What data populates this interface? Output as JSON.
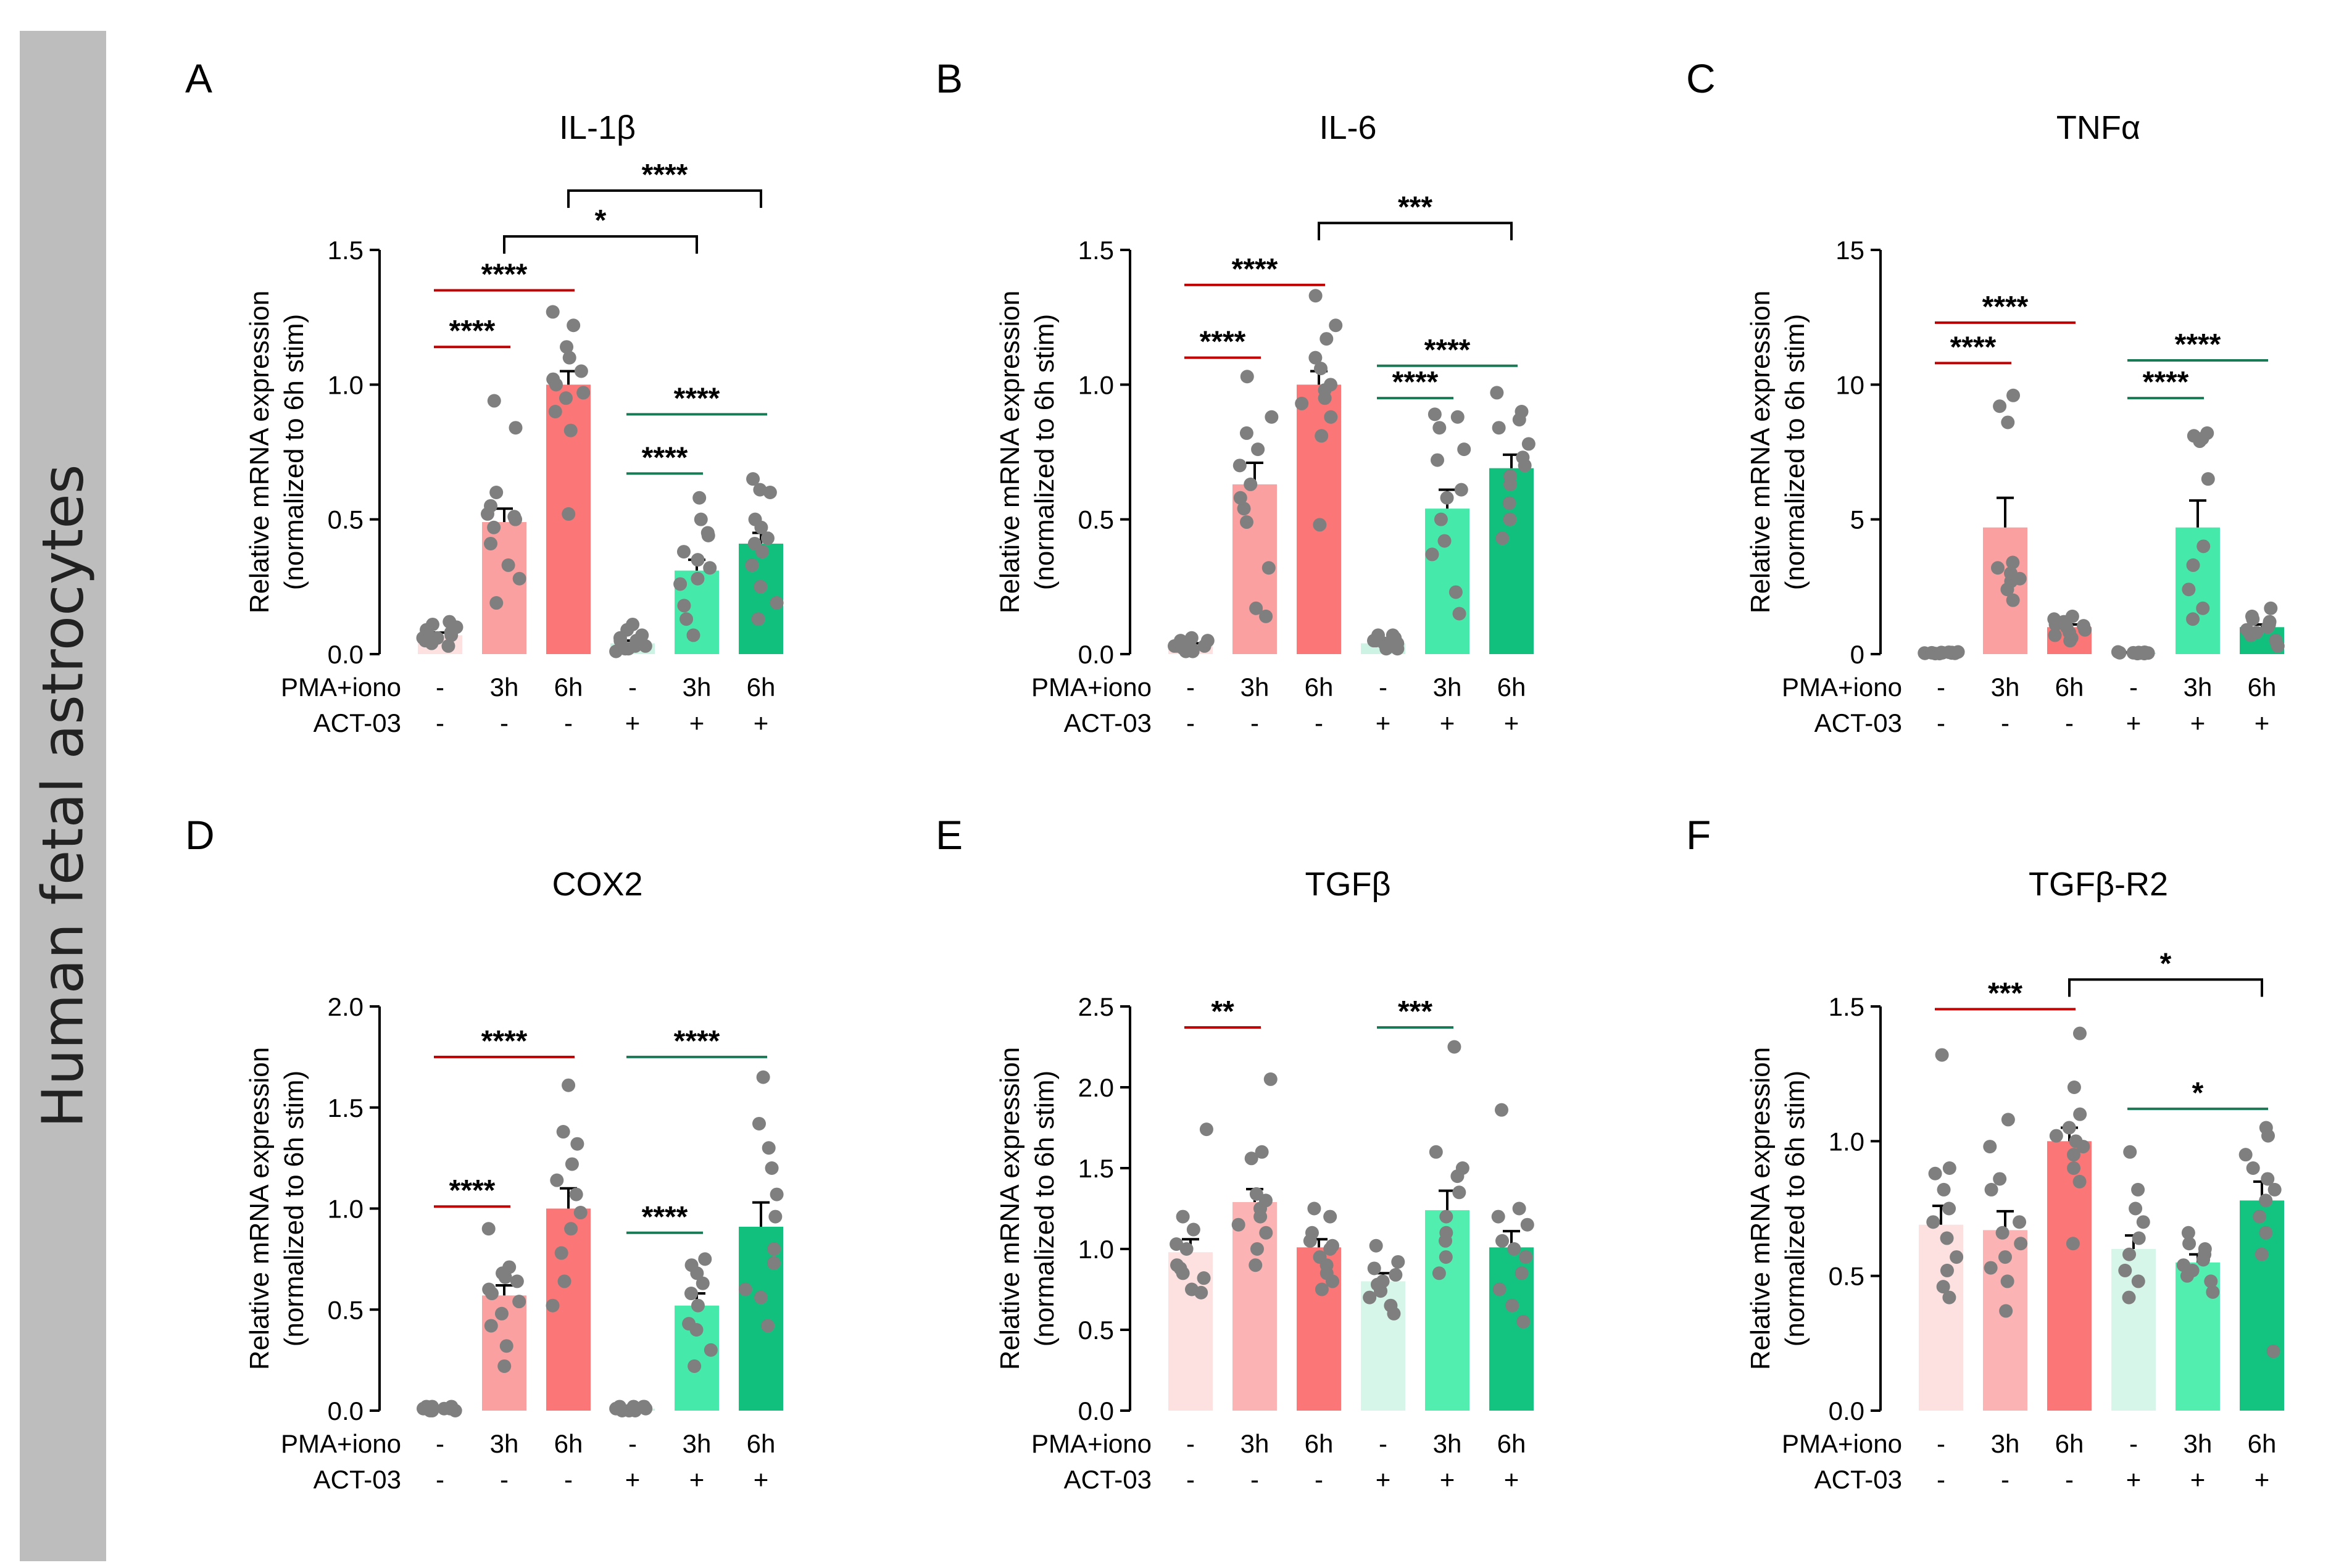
{
  "sidebar_label": "Human fetal astrocytes",
  "colors": {
    "dot": "#7f7f7f",
    "red_line": "#c00000",
    "green_line": "#1a7a55",
    "black_line": "#000000",
    "bars_strong": [
      "#fde0e0",
      "#fba0a0",
      "#fb7777",
      "#ccf3e3",
      "#45eaaa",
      "#10c07c"
    ],
    "bars_weak": [
      "#fde0e0",
      "#fbb3b3",
      "#fb7777",
      "#d6f6ea",
      "#52eeb0",
      "#13c380"
    ]
  },
  "condition_rows": [
    {
      "label": "PMA+iono",
      "values": [
        "-",
        "3h",
        "6h",
        "-",
        "3h",
        "6h"
      ]
    },
    {
      "label": "ACT-03",
      "values": [
        "-",
        "-",
        "-",
        "+",
        "+",
        "+"
      ]
    }
  ],
  "chart_data": [
    {
      "panel": "A",
      "title": "IL-1β",
      "type": "bar",
      "ylabel": [
        "Relative mRNA expression",
        "(normalized to 6h stim)"
      ],
      "ylim": [
        0,
        1.5
      ],
      "yticks": [
        "0.0",
        "0.5",
        "1.0",
        "1.5"
      ],
      "first_bar_faded": false,
      "categories": [
        "-/-",
        "3h/-",
        "6h/-",
        "-/+",
        "3h/+",
        "6h/+"
      ],
      "values": [
        0.07,
        0.49,
        1.0,
        0.04,
        0.31,
        0.41
      ],
      "sem": [
        0.01,
        0.05,
        0.05,
        0.01,
        0.04,
        0.04
      ],
      "points": [
        [
          0.03,
          0.05,
          0.06,
          0.07,
          0.07,
          0.08,
          0.09,
          0.1,
          0.11,
          0.12,
          0.06,
          0.04
        ],
        [
          0.19,
          0.28,
          0.33,
          0.41,
          0.47,
          0.5,
          0.51,
          0.52,
          0.55,
          0.6,
          0.84,
          0.94
        ],
        [
          0.52,
          0.83,
          0.9,
          0.95,
          0.97,
          1.0,
          1.02,
          1.05,
          1.1,
          1.14,
          1.22,
          1.27
        ],
        [
          0.01,
          0.02,
          0.02,
          0.03,
          0.03,
          0.04,
          0.05,
          0.05,
          0.07,
          0.09,
          0.11,
          0.06
        ],
        [
          0.07,
          0.13,
          0.18,
          0.26,
          0.28,
          0.32,
          0.35,
          0.38,
          0.44,
          0.45,
          0.5,
          0.58
        ],
        [
          0.13,
          0.19,
          0.25,
          0.33,
          0.38,
          0.41,
          0.43,
          0.47,
          0.5,
          0.6,
          0.61,
          0.65
        ]
      ],
      "comparisons": [
        {
          "from": 0,
          "to": 1,
          "y": 1.14,
          "label": "****",
          "color": "red",
          "bracket": false
        },
        {
          "from": 0,
          "to": 2,
          "y": 1.35,
          "label": "****",
          "color": "red",
          "bracket": false
        },
        {
          "from": 3,
          "to": 4,
          "y": 0.67,
          "label": "****",
          "color": "green",
          "bracket": false
        },
        {
          "from": 3,
          "to": 5,
          "y": 0.89,
          "label": "****",
          "color": "green",
          "bracket": false
        },
        {
          "from": 1,
          "to": 4,
          "y": 1.55,
          "label": "*",
          "color": "black",
          "bracket": true
        },
        {
          "from": 2,
          "to": 5,
          "y": 1.72,
          "label": "****",
          "color": "black",
          "bracket": true
        }
      ]
    },
    {
      "panel": "B",
      "title": "IL-6",
      "type": "bar",
      "ylabel": [
        "Relative mRNA expression",
        "(normalized to 6h stim)"
      ],
      "ylim": [
        0,
        1.5
      ],
      "yticks": [
        "0.0",
        "0.5",
        "1.0",
        "1.5"
      ],
      "first_bar_faded": false,
      "categories": [
        "-/-",
        "3h/-",
        "6h/-",
        "-/+",
        "3h/+",
        "6h/+"
      ],
      "values": [
        0.03,
        0.63,
        1.0,
        0.04,
        0.54,
        0.69
      ],
      "sem": [
        0.01,
        0.08,
        0.05,
        0.01,
        0.07,
        0.05
      ],
      "points": [
        [
          0.01,
          0.01,
          0.02,
          0.02,
          0.03,
          0.03,
          0.03,
          0.04,
          0.04,
          0.05,
          0.05,
          0.06
        ],
        [
          0.14,
          0.17,
          0.32,
          0.49,
          0.54,
          0.58,
          0.63,
          0.7,
          0.76,
          0.82,
          0.88,
          1.03
        ],
        [
          0.48,
          0.81,
          0.88,
          0.93,
          0.95,
          0.98,
          1.0,
          1.06,
          1.1,
          1.17,
          1.22,
          1.33
        ],
        [
          0.02,
          0.02,
          0.03,
          0.03,
          0.04,
          0.04,
          0.04,
          0.05,
          0.05,
          0.06,
          0.07,
          0.07
        ],
        [
          0.15,
          0.23,
          0.37,
          0.42,
          0.5,
          0.58,
          0.61,
          0.72,
          0.76,
          0.84,
          0.88,
          0.89
        ],
        [
          0.43,
          0.5,
          0.56,
          0.63,
          0.66,
          0.7,
          0.73,
          0.78,
          0.84,
          0.87,
          0.9,
          0.97
        ]
      ],
      "comparisons": [
        {
          "from": 0,
          "to": 1,
          "y": 1.1,
          "label": "****",
          "color": "red",
          "bracket": false
        },
        {
          "from": 0,
          "to": 2,
          "y": 1.37,
          "label": "****",
          "color": "red",
          "bracket": false
        },
        {
          "from": 3,
          "to": 4,
          "y": 0.95,
          "label": "****",
          "color": "green",
          "bracket": false
        },
        {
          "from": 3,
          "to": 5,
          "y": 1.07,
          "label": "****",
          "color": "green",
          "bracket": false
        },
        {
          "from": 2,
          "to": 5,
          "y": 1.6,
          "label": "***",
          "color": "black",
          "bracket": true
        }
      ]
    },
    {
      "panel": "C",
      "title": "TNFα",
      "type": "bar",
      "ylabel": [
        "Relative mRNA expression",
        "(normalized to 6h stim)"
      ],
      "ylim": [
        0,
        15
      ],
      "yticks": [
        "0",
        "5",
        "10",
        "15"
      ],
      "first_bar_faded": false,
      "categories": [
        "-/-",
        "3h/-",
        "6h/-",
        "-/+",
        "3h/+",
        "6h/+"
      ],
      "values": [
        0.05,
        4.7,
        1.0,
        0.05,
        4.7,
        1.0
      ],
      "sem": [
        0.01,
        1.1,
        0.1,
        0.01,
        1.0,
        0.1
      ],
      "points": [
        [
          0.02,
          0.02,
          0.03,
          0.03,
          0.04,
          0.04,
          0.05,
          0.05,
          0.06,
          0.06,
          0.07,
          0.08
        ],
        [
          2.0,
          2.4,
          2.7,
          2.8,
          3.0,
          3.2,
          3.4,
          8.6,
          9.2,
          9.6
        ],
        [
          0.5,
          0.6,
          0.7,
          0.8,
          0.9,
          1.0,
          1.05,
          1.1,
          1.2,
          1.3,
          1.4
        ],
        [
          0.02,
          0.02,
          0.03,
          0.03,
          0.04,
          0.04,
          0.05,
          0.05,
          0.06,
          0.06,
          0.07,
          0.08
        ],
        [
          1.3,
          1.7,
          2.4,
          3.3,
          4.0,
          6.5,
          7.9,
          8.0,
          8.1,
          8.2
        ],
        [
          0.3,
          0.5,
          0.7,
          0.8,
          0.9,
          1.0,
          1.1,
          1.2,
          1.3,
          1.4,
          1.7
        ]
      ],
      "comparisons": [
        {
          "from": 0,
          "to": 1,
          "y": 10.8,
          "label": "****",
          "color": "red",
          "bracket": false
        },
        {
          "from": 0,
          "to": 2,
          "y": 12.3,
          "label": "****",
          "color": "red",
          "bracket": false
        },
        {
          "from": 3,
          "to": 4,
          "y": 9.5,
          "label": "****",
          "color": "green",
          "bracket": false
        },
        {
          "from": 3,
          "to": 5,
          "y": 10.9,
          "label": "****",
          "color": "green",
          "bracket": false
        }
      ]
    },
    {
      "panel": "D",
      "title": "COX2",
      "type": "bar",
      "ylabel": [
        "Relative mRNA expression",
        "(normalized to 6h stim)"
      ],
      "ylim": [
        0,
        2.0
      ],
      "yticks": [
        "0.0",
        "0.5",
        "1.0",
        "1.5",
        "2.0"
      ],
      "first_bar_faded": false,
      "categories": [
        "-/-",
        "3h/-",
        "6h/-",
        "-/+",
        "3h/+",
        "6h/+"
      ],
      "values": [
        0.01,
        0.57,
        1.0,
        0.01,
        0.52,
        0.91
      ],
      "sem": [
        0.005,
        0.05,
        0.1,
        0.005,
        0.06,
        0.12
      ],
      "points": [
        [
          0.0,
          0.0,
          0.01,
          0.01,
          0.01,
          0.01,
          0.01,
          0.01,
          0.02,
          0.02,
          0.02,
          0.0
        ],
        [
          0.22,
          0.32,
          0.42,
          0.48,
          0.54,
          0.58,
          0.6,
          0.64,
          0.66,
          0.68,
          0.71,
          0.9
        ],
        [
          0.52,
          0.64,
          0.78,
          0.9,
          0.98,
          1.07,
          1.14,
          1.22,
          1.32,
          1.38,
          1.61
        ],
        [
          0.0,
          0.0,
          0.01,
          0.01,
          0.01,
          0.01,
          0.02,
          0.02,
          0.02,
          0.02,
          0.01,
          0.0
        ],
        [
          0.22,
          0.3,
          0.4,
          0.43,
          0.52,
          0.58,
          0.63,
          0.68,
          0.72,
          0.75
        ],
        [
          0.42,
          0.56,
          0.6,
          0.73,
          0.8,
          0.96,
          1.07,
          1.2,
          1.3,
          1.42,
          1.65
        ]
      ],
      "comparisons": [
        {
          "from": 0,
          "to": 1,
          "y": 1.01,
          "label": "****",
          "color": "red",
          "bracket": false
        },
        {
          "from": 0,
          "to": 2,
          "y": 1.75,
          "label": "****",
          "color": "red",
          "bracket": false
        },
        {
          "from": 3,
          "to": 4,
          "y": 0.88,
          "label": "****",
          "color": "green",
          "bracket": false
        },
        {
          "from": 3,
          "to": 5,
          "y": 1.75,
          "label": "****",
          "color": "green",
          "bracket": false
        }
      ]
    },
    {
      "panel": "E",
      "title": "TGFβ",
      "type": "bar",
      "ylabel": [
        "Relative mRNA expression",
        "(normalized to 6h stim)"
      ],
      "ylim": [
        0,
        2.5
      ],
      "yticks": [
        "0.0",
        "0.5",
        "1.0",
        "1.5",
        "2.0",
        "2.5"
      ],
      "first_bar_faded": true,
      "categories": [
        "-/-",
        "3h/-",
        "6h/-",
        "-/+",
        "3h/+",
        "6h/+"
      ],
      "values": [
        0.98,
        1.29,
        1.01,
        0.8,
        1.24,
        1.01
      ],
      "sem": [
        0.08,
        0.08,
        0.05,
        0.05,
        0.12,
        0.1
      ],
      "points": [
        [
          0.73,
          0.75,
          0.82,
          0.85,
          0.88,
          0.9,
          1.0,
          1.03,
          1.12,
          1.2,
          1.74
        ],
        [
          0.9,
          1.0,
          1.1,
          1.15,
          1.2,
          1.25,
          1.3,
          1.34,
          1.56,
          1.6,
          2.05
        ],
        [
          0.75,
          0.8,
          0.85,
          0.9,
          0.95,
          1.0,
          1.02,
          1.05,
          1.1,
          1.2,
          1.25
        ],
        [
          0.6,
          0.65,
          0.7,
          0.74,
          0.78,
          0.8,
          0.84,
          0.88,
          0.92,
          1.02
        ],
        [
          0.85,
          0.95,
          1.05,
          1.1,
          1.2,
          1.35,
          1.45,
          1.5,
          1.6,
          2.25
        ],
        [
          0.55,
          0.65,
          0.75,
          0.85,
          0.95,
          1.0,
          1.05,
          1.15,
          1.2,
          1.25,
          1.86
        ]
      ],
      "comparisons": [
        {
          "from": 0,
          "to": 1,
          "y": 2.37,
          "label": "**",
          "color": "red",
          "bracket": false
        },
        {
          "from": 3,
          "to": 4,
          "y": 2.37,
          "label": "***",
          "color": "green",
          "bracket": false
        }
      ]
    },
    {
      "panel": "F",
      "title": "TGFβ-R2",
      "type": "bar",
      "ylabel": [
        "Relative mRNA expression",
        "(normalized to 6h stim)"
      ],
      "ylim": [
        0,
        1.5
      ],
      "yticks": [
        "0.0",
        "0.5",
        "1.0",
        "1.5"
      ],
      "first_bar_faded": true,
      "categories": [
        "-/-",
        "3h/-",
        "6h/-",
        "-/+",
        "3h/+",
        "6h/+"
      ],
      "values": [
        0.69,
        0.67,
        1.0,
        0.6,
        0.55,
        0.78
      ],
      "sem": [
        0.07,
        0.07,
        0.05,
        0.05,
        0.03,
        0.07
      ],
      "points": [
        [
          0.42,
          0.46,
          0.52,
          0.57,
          0.64,
          0.7,
          0.75,
          0.82,
          0.88,
          0.9,
          1.32
        ],
        [
          0.37,
          0.48,
          0.53,
          0.57,
          0.62,
          0.66,
          0.7,
          0.82,
          0.86,
          0.98,
          1.08
        ],
        [
          0.62,
          0.85,
          0.9,
          0.95,
          0.98,
          1.0,
          1.02,
          1.05,
          1.1,
          1.2,
          1.4
        ],
        [
          0.42,
          0.48,
          0.52,
          0.58,
          0.64,
          0.7,
          0.75,
          0.82,
          0.96
        ],
        [
          0.44,
          0.48,
          0.5,
          0.52,
          0.54,
          0.56,
          0.58,
          0.6,
          0.62,
          0.66
        ],
        [
          0.22,
          0.58,
          0.66,
          0.72,
          0.78,
          0.82,
          0.86,
          0.9,
          0.95,
          1.02,
          1.05
        ]
      ],
      "comparisons": [
        {
          "from": 0,
          "to": 2,
          "y": 1.49,
          "label": "***",
          "color": "red",
          "bracket": false
        },
        {
          "from": 3,
          "to": 5,
          "y": 1.12,
          "label": "*",
          "color": "green",
          "bracket": false
        },
        {
          "from": 2,
          "to": 5,
          "y": 1.6,
          "label": "*",
          "color": "black",
          "bracket": true
        }
      ]
    }
  ]
}
